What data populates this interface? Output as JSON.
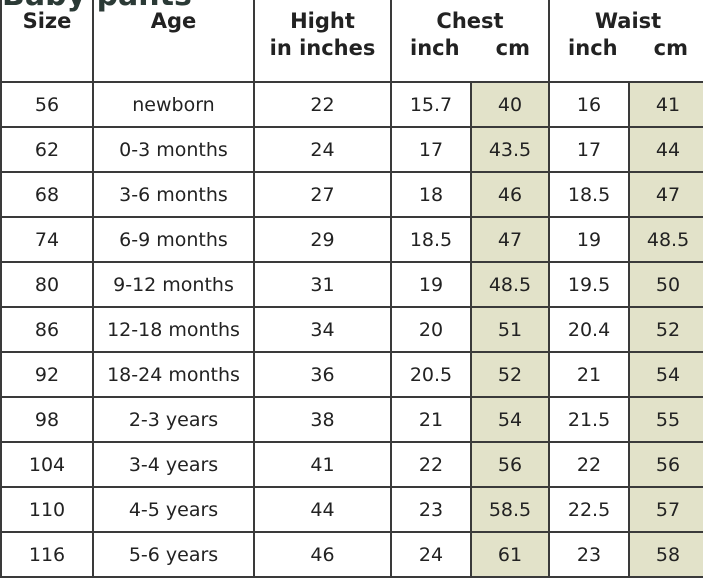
{
  "title": "Baby pants",
  "headers": {
    "size": "Size",
    "age": "Age",
    "height1": "Hight",
    "height2": "in inches",
    "chest": "Chest",
    "waist": "Waist",
    "inch": "inch",
    "cm": "cm"
  },
  "rows": [
    [
      "56",
      "newborn",
      "22",
      "15.7",
      "40",
      "16",
      "41"
    ],
    [
      "62",
      "0-3 months",
      "24",
      "17",
      "43.5",
      "17",
      "44"
    ],
    [
      "68",
      "3-6 months",
      "27",
      "18",
      "46",
      "18.5",
      "47"
    ],
    [
      "74",
      "6-9 months",
      "29",
      "18.5",
      "47",
      "19",
      "48.5"
    ],
    [
      "80",
      "9-12 months",
      "31",
      "19",
      "48.5",
      "19.5",
      "50"
    ],
    [
      "86",
      "12-18 months",
      "34",
      "20",
      "51",
      "20.4",
      "52"
    ],
    [
      "92",
      "18-24 months",
      "36",
      "20.5",
      "52",
      "21",
      "54"
    ],
    [
      "98",
      "2-3 years",
      "38",
      "21",
      "54",
      "21.5",
      "55"
    ],
    [
      "104",
      "3-4 years",
      "41",
      "22",
      "56",
      "22",
      "56"
    ],
    [
      "110",
      "4-5 years",
      "44",
      "23",
      "58.5",
      "22.5",
      "57"
    ],
    [
      "116",
      "5-6 years",
      "46",
      "24",
      "61",
      "23",
      "58"
    ]
  ],
  "colors": {
    "shaded": "#e2e2c9",
    "border": "#3a3a3a"
  }
}
